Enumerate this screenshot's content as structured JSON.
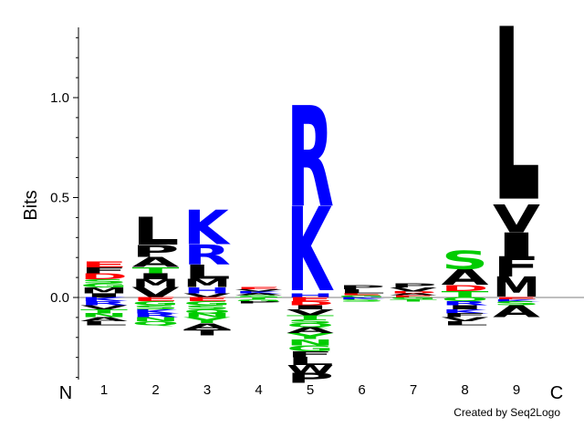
{
  "chart_data": {
    "type": "sequence-logo",
    "ylabel": "Bits",
    "ylim": [
      -0.4,
      1.33
    ],
    "yticks": [
      {
        "value": 0.0,
        "label": "0.0"
      },
      {
        "value": 0.5,
        "label": "0.5"
      },
      {
        "value": 1.0,
        "label": "1.0"
      }
    ],
    "n_label": "N",
    "c_label": "C",
    "credit": "Created by Seq2Logo",
    "colors": {
      "black": "#000000",
      "blue": "#0000ff",
      "green": "#00cc00",
      "red": "#ff0000"
    },
    "positions": [
      {
        "label": "1",
        "above": [
          {
            "letter": "I",
            "color": "black",
            "bits": 0.02
          },
          {
            "letter": "M",
            "color": "black",
            "bits": 0.03
          },
          {
            "letter": "G",
            "color": "green",
            "bits": 0.02
          },
          {
            "letter": "S",
            "color": "green",
            "bits": 0.02
          },
          {
            "letter": "D",
            "color": "red",
            "bits": 0.03
          },
          {
            "letter": "F",
            "color": "black",
            "bits": 0.03
          },
          {
            "letter": "E",
            "color": "red",
            "bits": 0.03
          }
        ],
        "below": [
          {
            "letter": "K",
            "color": "blue",
            "bits": 0.02
          },
          {
            "letter": "R",
            "color": "blue",
            "bits": 0.02
          },
          {
            "letter": "V",
            "color": "black",
            "bits": 0.02
          },
          {
            "letter": "T",
            "color": "green",
            "bits": 0.02
          },
          {
            "letter": "N",
            "color": "green",
            "bits": 0.02
          },
          {
            "letter": "A",
            "color": "black",
            "bits": 0.02
          },
          {
            "letter": "L",
            "color": "black",
            "bits": 0.02
          }
        ]
      },
      {
        "label": "2",
        "above": [
          {
            "letter": "V",
            "color": "black",
            "bits": 0.05
          },
          {
            "letter": "M",
            "color": "black",
            "bits": 0.04
          },
          {
            "letter": "I",
            "color": "black",
            "bits": 0.03
          },
          {
            "letter": "T",
            "color": "green",
            "bits": 0.03
          },
          {
            "letter": "A",
            "color": "black",
            "bits": 0.05
          },
          {
            "letter": "P",
            "color": "black",
            "bits": 0.06
          },
          {
            "letter": "L",
            "color": "black",
            "bits": 0.14
          }
        ],
        "below": [
          {
            "letter": "E",
            "color": "red",
            "bits": 0.02
          },
          {
            "letter": "G",
            "color": "green",
            "bits": 0.02
          },
          {
            "letter": "S",
            "color": "green",
            "bits": 0.02
          },
          {
            "letter": "K",
            "color": "blue",
            "bits": 0.02
          },
          {
            "letter": "R",
            "color": "blue",
            "bits": 0.02
          },
          {
            "letter": "N",
            "color": "green",
            "bits": 0.02
          },
          {
            "letter": "Q",
            "color": "green",
            "bits": 0.02
          }
        ]
      },
      {
        "label": "3",
        "above": [
          {
            "letter": "V",
            "color": "black",
            "bits": 0.02
          },
          {
            "letter": "H",
            "color": "blue",
            "bits": 0.03
          },
          {
            "letter": "M",
            "color": "black",
            "bits": 0.04
          },
          {
            "letter": "L",
            "color": "black",
            "bits": 0.07
          },
          {
            "letter": "R",
            "color": "blue",
            "bits": 0.1
          },
          {
            "letter": "K",
            "color": "blue",
            "bits": 0.17
          }
        ],
        "below": [
          {
            "letter": "E",
            "color": "red",
            "bits": 0.02
          },
          {
            "letter": "G",
            "color": "green",
            "bits": 0.02
          },
          {
            "letter": "S",
            "color": "green",
            "bits": 0.02
          },
          {
            "letter": "Q",
            "color": "green",
            "bits": 0.02
          },
          {
            "letter": "N",
            "color": "green",
            "bits": 0.02
          },
          {
            "letter": "Y",
            "color": "green",
            "bits": 0.03
          },
          {
            "letter": "A",
            "color": "black",
            "bits": 0.03
          },
          {
            "letter": "T",
            "color": "black",
            "bits": 0.03
          }
        ]
      },
      {
        "label": "4",
        "above": [
          {
            "letter": "S",
            "color": "green",
            "bits": 0.01
          },
          {
            "letter": "A",
            "color": "black",
            "bits": 0.01
          },
          {
            "letter": "K",
            "color": "blue",
            "bits": 0.01
          },
          {
            "letter": "V",
            "color": "black",
            "bits": 0.01
          },
          {
            "letter": "E",
            "color": "red",
            "bits": 0.01
          }
        ],
        "below": [
          {
            "letter": "T",
            "color": "green",
            "bits": 0.01
          },
          {
            "letter": "G",
            "color": "green",
            "bits": 0.01
          },
          {
            "letter": "P",
            "color": "black",
            "bits": 0.01
          }
        ]
      },
      {
        "label": "5",
        "above": [
          {
            "letter": "H",
            "color": "blue",
            "bits": 0.02
          },
          {
            "letter": "K",
            "color": "blue",
            "bits": 0.42
          },
          {
            "letter": "R",
            "color": "blue",
            "bits": 0.5
          }
        ],
        "below": [
          {
            "letter": "E",
            "color": "red",
            "bits": 0.02
          },
          {
            "letter": "D",
            "color": "red",
            "bits": 0.02
          },
          {
            "letter": "I",
            "color": "black",
            "bits": 0.02
          },
          {
            "letter": "V",
            "color": "black",
            "bits": 0.03
          },
          {
            "letter": "T",
            "color": "green",
            "bits": 0.02
          },
          {
            "letter": "S",
            "color": "green",
            "bits": 0.02
          },
          {
            "letter": "Q",
            "color": "green",
            "bits": 0.02
          },
          {
            "letter": "A",
            "color": "black",
            "bits": 0.03
          },
          {
            "letter": "Y",
            "color": "green",
            "bits": 0.03
          },
          {
            "letter": "N",
            "color": "green",
            "bits": 0.03
          },
          {
            "letter": "G",
            "color": "green",
            "bits": 0.03
          },
          {
            "letter": "F",
            "color": "black",
            "bits": 0.03
          },
          {
            "letter": "L",
            "color": "black",
            "bits": 0.04
          },
          {
            "letter": "W",
            "color": "black",
            "bits": 0.04
          },
          {
            "letter": "P",
            "color": "black",
            "bits": 0.05
          }
        ]
      },
      {
        "label": "6",
        "above": [
          {
            "letter": "G",
            "color": "green",
            "bits": 0.01
          },
          {
            "letter": "E",
            "color": "red",
            "bits": 0.01
          },
          {
            "letter": "L",
            "color": "black",
            "bits": 0.02
          },
          {
            "letter": "P",
            "color": "black",
            "bits": 0.02
          }
        ],
        "below": [
          {
            "letter": "K",
            "color": "blue",
            "bits": 0.01
          },
          {
            "letter": "S",
            "color": "green",
            "bits": 0.01
          }
        ]
      },
      {
        "label": "7",
        "above": [
          {
            "letter": "E",
            "color": "red",
            "bits": 0.01
          },
          {
            "letter": "A",
            "color": "black",
            "bits": 0.01
          },
          {
            "letter": "D",
            "color": "red",
            "bits": 0.01
          },
          {
            "letter": "V",
            "color": "black",
            "bits": 0.02
          },
          {
            "letter": "P",
            "color": "black",
            "bits": 0.02
          }
        ],
        "below": [
          {
            "letter": "G",
            "color": "green",
            "bits": 0.01
          },
          {
            "letter": "T",
            "color": "green",
            "bits": 0.01
          }
        ]
      },
      {
        "label": "8",
        "above": [
          {
            "letter": "T",
            "color": "green",
            "bits": 0.03
          },
          {
            "letter": "D",
            "color": "red",
            "bits": 0.03
          },
          {
            "letter": "A",
            "color": "black",
            "bits": 0.08
          },
          {
            "letter": "S",
            "color": "green",
            "bits": 0.09
          }
        ],
        "below": [
          {
            "letter": "Q",
            "color": "green",
            "bits": 0.02
          },
          {
            "letter": "R",
            "color": "blue",
            "bits": 0.02
          },
          {
            "letter": "I",
            "color": "black",
            "bits": 0.02
          },
          {
            "letter": "K",
            "color": "blue",
            "bits": 0.02
          },
          {
            "letter": "F",
            "color": "black",
            "bits": 0.02
          },
          {
            "letter": "V",
            "color": "black",
            "bits": 0.02
          },
          {
            "letter": "L",
            "color": "black",
            "bits": 0.02
          }
        ]
      },
      {
        "label": "9",
        "above": [
          {
            "letter": "M",
            "color": "black",
            "bits": 0.1
          },
          {
            "letter": "F",
            "color": "black",
            "bits": 0.1
          },
          {
            "letter": "I",
            "color": "black",
            "bits": 0.12
          },
          {
            "letter": "V",
            "color": "black",
            "bits": 0.14
          },
          {
            "letter": "L",
            "color": "black",
            "bits": 0.86
          }
        ],
        "below": [
          {
            "letter": "E",
            "color": "red",
            "bits": 0.01
          },
          {
            "letter": "K",
            "color": "blue",
            "bits": 0.01
          },
          {
            "letter": "S",
            "color": "green",
            "bits": 0.02
          },
          {
            "letter": "A",
            "color": "black",
            "bits": 0.06
          }
        ]
      }
    ]
  }
}
